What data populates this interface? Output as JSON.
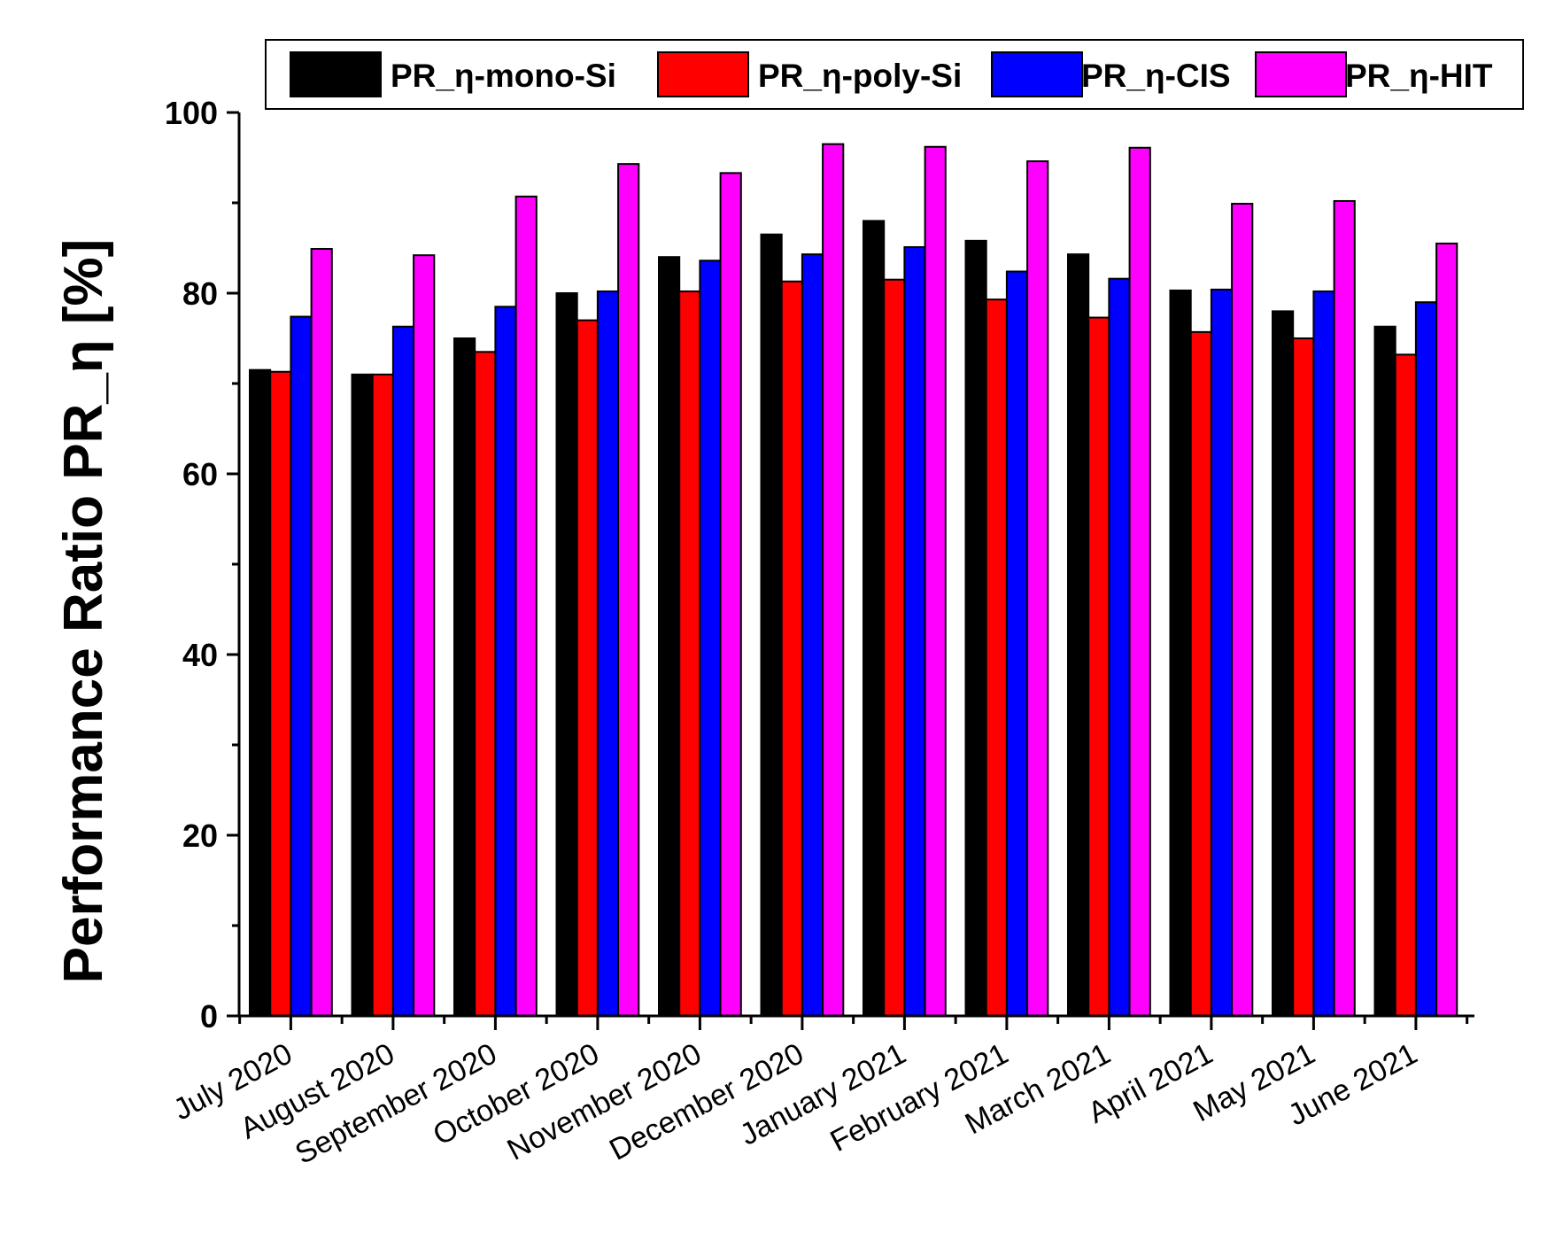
{
  "chart_data": {
    "type": "bar",
    "title": "",
    "xlabel": "",
    "ylabel": "Performance Ratio PR_η [%]",
    "ylim": [
      0,
      100
    ],
    "yticks": [
      0,
      20,
      40,
      60,
      80,
      100
    ],
    "yminor_step": 10,
    "grid": false,
    "legend_position": "top",
    "categories": [
      "July 2020",
      "August 2020",
      "September 2020",
      "October 2020",
      "November 2020",
      "December 2020",
      "January 2021",
      "February 2021",
      "March 2021",
      "April 2021",
      "May 2021",
      "June 2021"
    ],
    "series": [
      {
        "name": "PR_η-mono-Si",
        "color": "#000000",
        "values": [
          71.5,
          71.0,
          75.0,
          80.0,
          84.0,
          86.5,
          88.0,
          85.8,
          84.3,
          80.3,
          78.0,
          76.3
        ]
      },
      {
        "name": "PR_η-poly-Si",
        "color": "#ff0000",
        "values": [
          71.3,
          71.0,
          73.5,
          77.0,
          80.2,
          81.3,
          81.5,
          79.3,
          77.3,
          75.7,
          75.0,
          73.2
        ]
      },
      {
        "name": "PR_η-CIS",
        "color": "#0000ff",
        "values": [
          77.4,
          76.3,
          78.5,
          80.2,
          83.6,
          84.3,
          85.1,
          82.4,
          81.6,
          80.4,
          80.2,
          79.0
        ]
      },
      {
        "name": "PR_η-HIT",
        "color": "#ff00ff",
        "values": [
          84.9,
          84.2,
          90.7,
          94.3,
          93.3,
          96.5,
          96.2,
          94.6,
          96.1,
          89.9,
          90.2,
          85.5
        ]
      }
    ]
  }
}
